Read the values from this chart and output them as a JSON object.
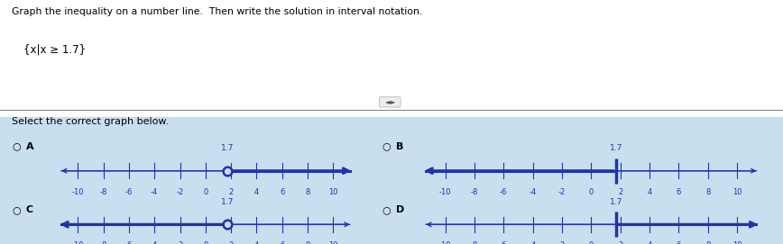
{
  "title_line1": "Graph the inequality on a number line.  Then write the solution in interval notation.",
  "title_line2": "{x|x ≥ 1.7}",
  "select_text": "Select the correct graph below.",
  "bg_top": "#ffffff",
  "bg_bottom": "#c8dff0",
  "text_color": "#000000",
  "line_color": "#2233aa",
  "point_value": 1.7,
  "graphs": [
    {
      "label": "A",
      "direction": "right",
      "endpoint_type": "open_paren"
    },
    {
      "label": "B",
      "direction": "left",
      "endpoint_type": "closed_bracket"
    },
    {
      "label": "C",
      "direction": "left",
      "endpoint_type": "open_paren"
    },
    {
      "label": "D",
      "direction": "right",
      "endpoint_type": "closed_bracket"
    }
  ]
}
